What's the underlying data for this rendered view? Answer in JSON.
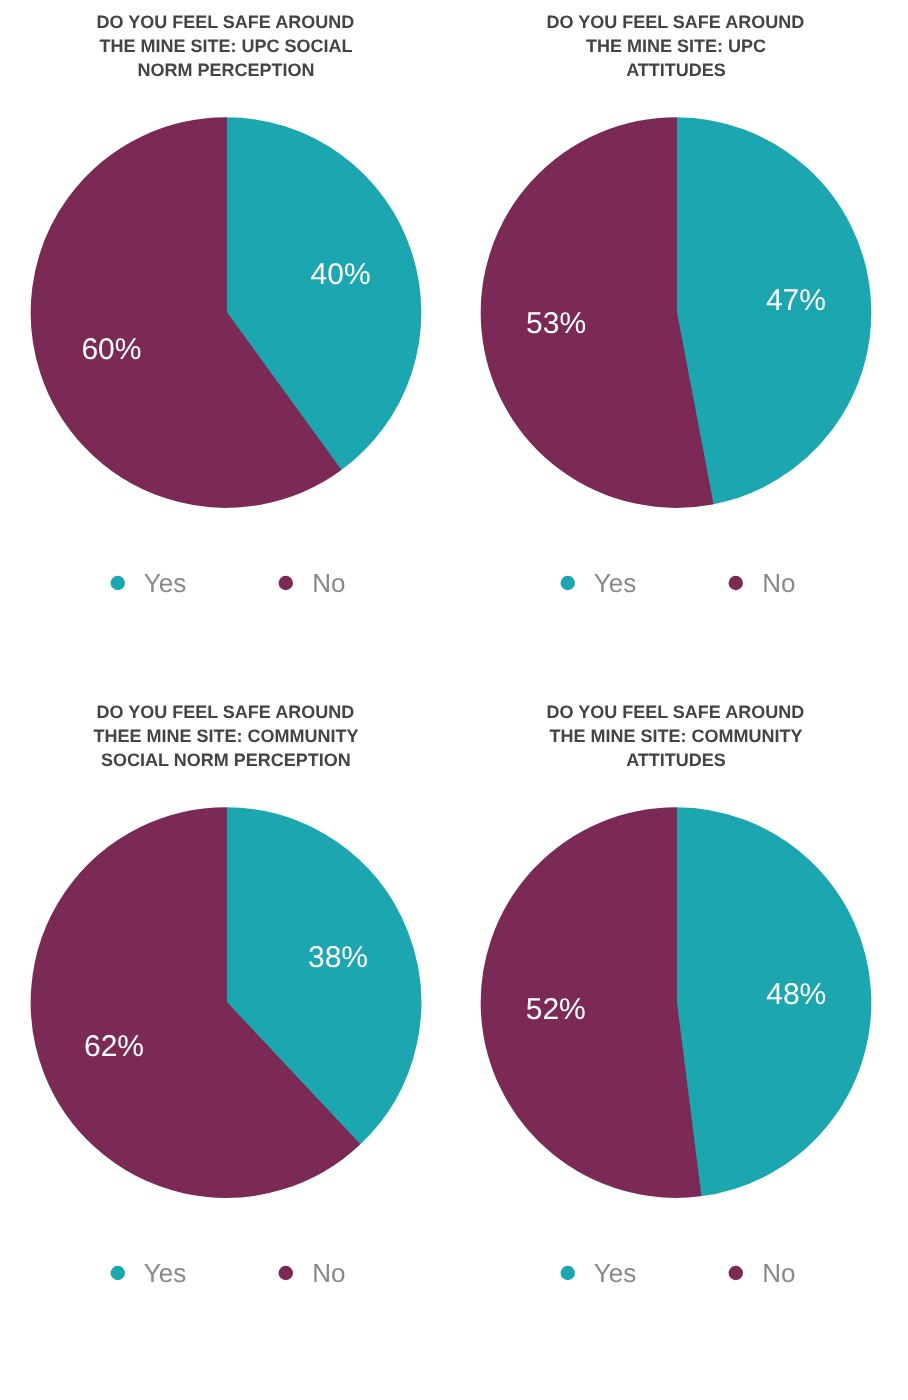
{
  "chart_data": [
    {
      "type": "pie",
      "title": "DO YOU FEEL SAFE AROUND THE MINE SITE: UPC SOCIAL NORM PERCEPTION",
      "categories": [
        "Yes",
        "No"
      ],
      "values": [
        40,
        60
      ],
      "colors": [
        "#1ba6b0",
        "#7b2a56"
      ],
      "value_labels": [
        "40%",
        "60%"
      ],
      "legend": "bottom"
    },
    {
      "type": "pie",
      "title": "DO YOU FEEL SAFE AROUND THE MINE SITE: UPC ATTITUDES",
      "categories": [
        "Yes",
        "No"
      ],
      "values": [
        47,
        53
      ],
      "colors": [
        "#1ba6b0",
        "#7b2a56"
      ],
      "value_labels": [
        "47%",
        "53%"
      ],
      "legend": "bottom"
    },
    {
      "type": "pie",
      "title": "DO YOU FEEL SAFE AROUND THEE MINE SITE: COMMUNITY SOCIAL NORM PERCEPTION",
      "categories": [
        "Yes",
        "No"
      ],
      "values": [
        38,
        62
      ],
      "colors": [
        "#1ba6b0",
        "#7b2a56"
      ],
      "value_labels": [
        "38%",
        "62%"
      ],
      "legend": "bottom"
    },
    {
      "type": "pie",
      "title": "DO YOU FEEL SAFE AROUND THE MINE SITE: COMMUNITY ATTITUDES",
      "categories": [
        "Yes",
        "No"
      ],
      "values": [
        48,
        52
      ],
      "colors": [
        "#1ba6b0",
        "#7b2a56"
      ],
      "value_labels": [
        "48%",
        "52%"
      ],
      "legend": "bottom"
    }
  ]
}
